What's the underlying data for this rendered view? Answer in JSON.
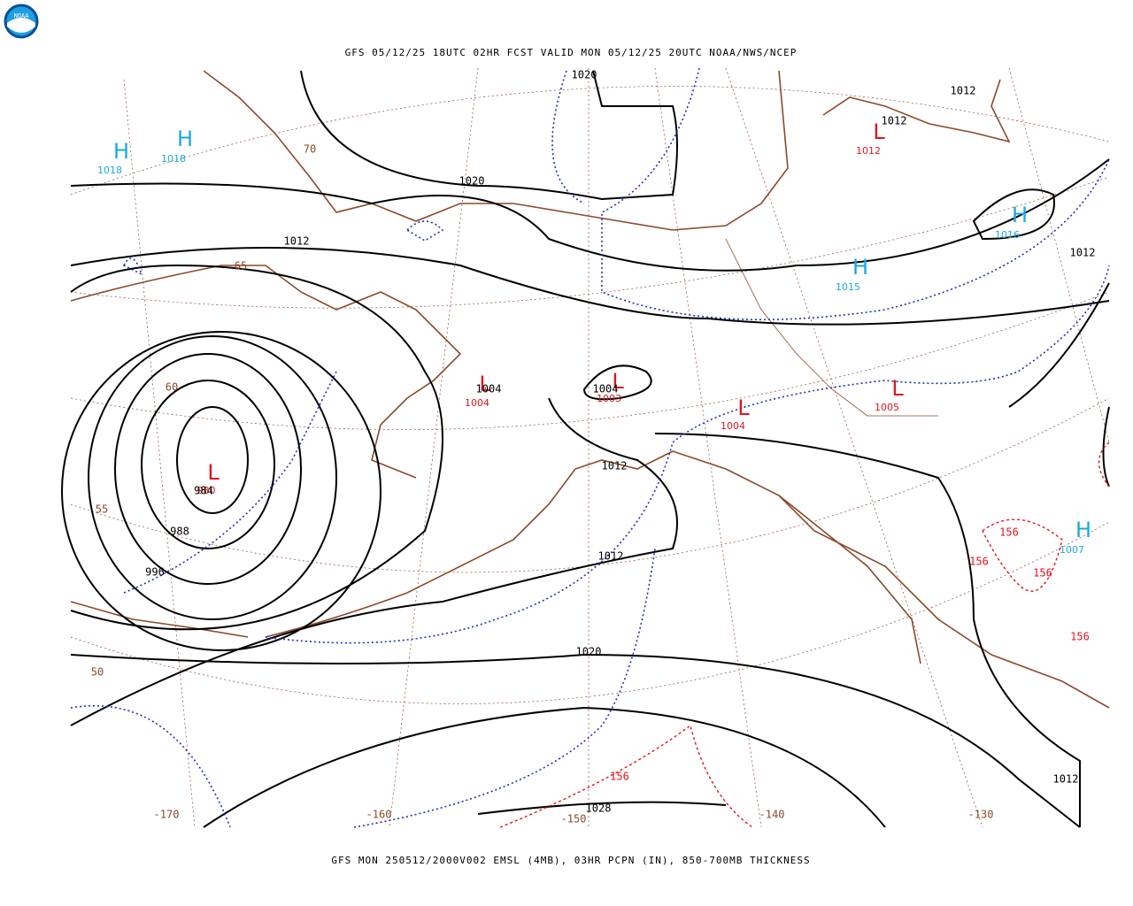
{
  "header": {
    "title": "GFS 05/12/25 18UTC 02HR FCST VALID MON 05/12/25 20UTC NOAA/NWS/NCEP"
  },
  "footer": {
    "caption": "GFS MON 250512/2000V002 EMSL (4MB), 03HR PCPN (IN), 850-700MB THICKNESS"
  },
  "logo": {
    "text": "NOAA"
  },
  "highs": [
    {
      "symbol": "H",
      "value": 1018
    },
    {
      "symbol": "H",
      "value": 1018
    },
    {
      "symbol": "H",
      "value": 1016
    },
    {
      "symbol": "H",
      "value": 1015
    },
    {
      "symbol": "H",
      "value": 1007
    }
  ],
  "lows": [
    {
      "symbol": "L",
      "value": 1012
    },
    {
      "symbol": "L",
      "value": 1004
    },
    {
      "symbol": "L",
      "value": 1003
    },
    {
      "symbol": "L",
      "value": 1004
    },
    {
      "symbol": "L",
      "value": 1005
    },
    {
      "symbol": "L",
      "value": 980
    }
  ],
  "isobar_labels": [
    1020,
    1012,
    1012,
    1020,
    1012,
    1012,
    1004,
    1004,
    1012,
    984,
    988,
    996,
    1012,
    1020,
    1012,
    1028
  ],
  "thickness_labels": [
    156,
    156,
    156,
    156,
    156
  ],
  "lat_labels": [
    70,
    65,
    60,
    55,
    50
  ],
  "lon_labels": [
    -170,
    -160,
    -150,
    -140,
    -130
  ]
}
